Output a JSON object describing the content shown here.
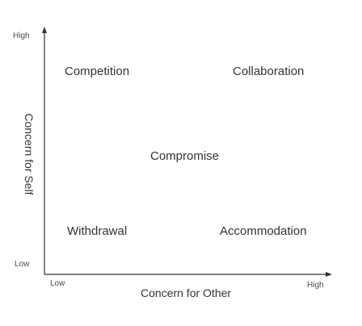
{
  "axes": {
    "y": {
      "title": "Concern for Self",
      "high": "High",
      "low": "Low"
    },
    "x": {
      "title": "Concern for Other",
      "high": "High",
      "low": "Low"
    }
  },
  "regions": {
    "competition": "Competition",
    "collaboration": "Collaboration",
    "compromise": "Compromise",
    "withdrawal": "Withdrawal",
    "accommodation": "Accommodation"
  }
}
